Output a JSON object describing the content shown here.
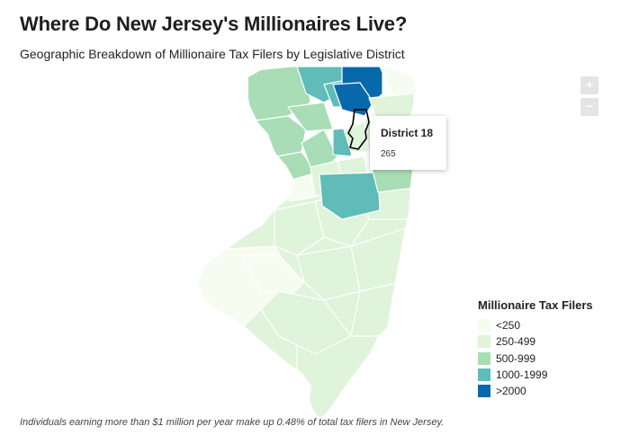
{
  "title": "Where Do New Jersey's Millionaires Live?",
  "subtitle": "Geographic Breakdown of Millionaire Tax Filers by Legislative District",
  "zoom": {
    "in_label": "+",
    "out_label": "−"
  },
  "tooltip": {
    "title": "District 18",
    "value": "265"
  },
  "legend": {
    "title": "Millionaire Tax Filers",
    "items": [
      {
        "label": "<250",
        "color": "#f7fcf0"
      },
      {
        "label": "250-499",
        "color": "#e0f3db"
      },
      {
        "label": "500-999",
        "color": "#a8ddb5"
      },
      {
        "label": "1000-1999",
        "color": "#5fbcb9"
      },
      {
        "label": ">2000",
        "color": "#0868ac"
      }
    ]
  },
  "footnote": "Individuals earning more than $1 million per year make up 0.48% of total tax filers in New Jersey.",
  "colors": {
    "c1": "#f7fcf0",
    "c2": "#e0f3db",
    "c3": "#a8ddb5",
    "c4": "#5fbcb9",
    "c5": "#0868ac",
    "border": "#ffffff",
    "highlight": "#000000"
  }
}
